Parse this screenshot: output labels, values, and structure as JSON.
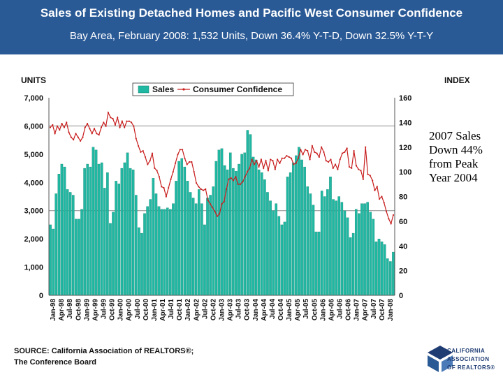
{
  "header": {
    "title": "Sales of Existing Detached Homes and Pacific West Consumer Confidence",
    "subtitle": "Bay Area, February 2008: 1,532 Units, Down 36.4% Y-T-D, Down 32.5% Y-T-Y"
  },
  "annotation": {
    "line1": "2007 Sales",
    "line2": "Down 44%",
    "line3": "from Peak",
    "line4": "Year 2004"
  },
  "source": {
    "line1": "SOURCE: California Association of REALTORS®;",
    "line2": "The Conference Board"
  },
  "logo": {
    "line1": "CALIFORNIA",
    "line2": "ASSOCIATION",
    "line3": "OF REALTORS®"
  },
  "colors": {
    "banner": "#2a5a96",
    "bars": "#20b8a2",
    "barStroke": "#0f7e6d",
    "line": "#c81e1e",
    "grid": "#8c8c8c"
  },
  "chart_data": {
    "type": "bar+line",
    "title": "Sales of Existing Detached Homes and Pacific West Consumer Confidence",
    "ylabel_left": "UNITS",
    "ylabel_right": "INDEX",
    "ylim_left": [
      0,
      7000
    ],
    "ylim_right": [
      0,
      160
    ],
    "yticks_left": [
      "0",
      "1,000",
      "2,000",
      "3,000",
      "4,000",
      "5,000",
      "6,000",
      "7,000"
    ],
    "yticks_right": [
      "0",
      "20",
      "40",
      "60",
      "80",
      "100",
      "120",
      "140",
      "160"
    ],
    "grid_values_left": [
      3000,
      6000
    ],
    "xticks": [
      "Jan-98",
      "Apr-98",
      "Jul-98",
      "Oct-98",
      "Jan-99",
      "Apr-99",
      "Jul-99",
      "Oct-99",
      "Jan-00",
      "Apr-00",
      "Jul-00",
      "Oct-00",
      "Jan-01",
      "Apr-01",
      "Jul-01",
      "Oct-01",
      "Jan-02",
      "Apr-02",
      "Jul-02",
      "Oct-02",
      "Jan-03",
      "Apr-03",
      "Jul-03",
      "Oct-03",
      "Jan-04",
      "Apr-04",
      "Jul-04",
      "Oct-04",
      "Jan-05",
      "Apr-05",
      "Jul-05",
      "Oct-05",
      "Jan-06",
      "Apr-06",
      "Jul-06",
      "Oct-06",
      "Jan-07",
      "Apr-07",
      "Jul-07",
      "Oct-07",
      "Jan-08"
    ],
    "legend": [
      "Sales",
      "Consumer Confidence"
    ],
    "legend_position": "top",
    "series": [
      {
        "name": "Sales",
        "axis": "left",
        "type": "bar",
        "values": [
          2500,
          2350,
          3600,
          4300,
          4650,
          4550,
          3750,
          3650,
          3550,
          2700,
          2700,
          3050,
          4500,
          4650,
          4550,
          5250,
          5150,
          4650,
          4700,
          3800,
          4350,
          2550,
          2950,
          4050,
          3950,
          4500,
          4700,
          5050,
          4500,
          4450,
          3550,
          2400,
          2200,
          2900,
          3150,
          3400,
          4150,
          3600,
          3150,
          3050,
          3050,
          3100,
          3050,
          3250,
          4050,
          4750,
          4850,
          4550,
          4050,
          3650,
          3450,
          3250,
          3750,
          3250,
          2500,
          3450,
          3550,
          3850,
          4750,
          5150,
          5200,
          4600,
          4450,
          5050,
          4500,
          4400,
          4650,
          5000,
          5050,
          5850,
          5700,
          4900,
          4800,
          4450,
          4350,
          4100,
          3650,
          3350,
          3000,
          3250,
          2800,
          2500,
          2600,
          4200,
          4350,
          4700,
          4950,
          5250,
          4800,
          4550,
          3850,
          3600,
          3200,
          2250,
          2250,
          3700,
          3500,
          3750,
          4200,
          3400,
          3350,
          3500,
          3300,
          3000,
          2750,
          2050,
          2200,
          3050,
          2900,
          3250,
          3250,
          3300,
          2950,
          2700,
          1900,
          2000,
          1900,
          1800,
          1300,
          1200,
          1532
        ],
        "note": "Monthly values Jan-98 through Feb-08 (estimated from chart)"
      },
      {
        "name": "Consumer Confidence",
        "axis": "right",
        "type": "line",
        "values": [
          136,
          138,
          131,
          137,
          134,
          139,
          136,
          140,
          132,
          128,
          126,
          131,
          128,
          125,
          128,
          136,
          139,
          135,
          131,
          135,
          131,
          130,
          136,
          140,
          137,
          148,
          144,
          143,
          138,
          144,
          136,
          141,
          136,
          141,
          141,
          140,
          137,
          127,
          121,
          116,
          117,
          112,
          106,
          109,
          115,
          103,
          101,
          96,
          88,
          87,
          80,
          87,
          94,
          100,
          107,
          114,
          118,
          118,
          111,
          106,
          108,
          108,
          100,
          91,
          88,
          86,
          85,
          86,
          77,
          74,
          71,
          68,
          64,
          66,
          74,
          76,
          86,
          94,
          95,
          93,
          96,
          90,
          90,
          92,
          96,
          100,
          103,
          110,
          106,
          109,
          104,
          110,
          103,
          109,
          101,
          110,
          109,
          102,
          110,
          107,
          111,
          111,
          113,
          112,
          111,
          106,
          107,
          111,
          118,
          114,
          118,
          117,
          110,
          121,
          116,
          115,
          112,
          120,
          116,
          109,
          108,
          110,
          103,
          106,
          102,
          110,
          115,
          116,
          119,
          104,
          103,
          117,
          105,
          102,
          101,
          94,
          120,
          98,
          97,
          93,
          85,
          88,
          78,
          80,
          75,
          68,
          62,
          58,
          65
        ],
        "note": "Index values (estimated from chart)"
      }
    ]
  }
}
